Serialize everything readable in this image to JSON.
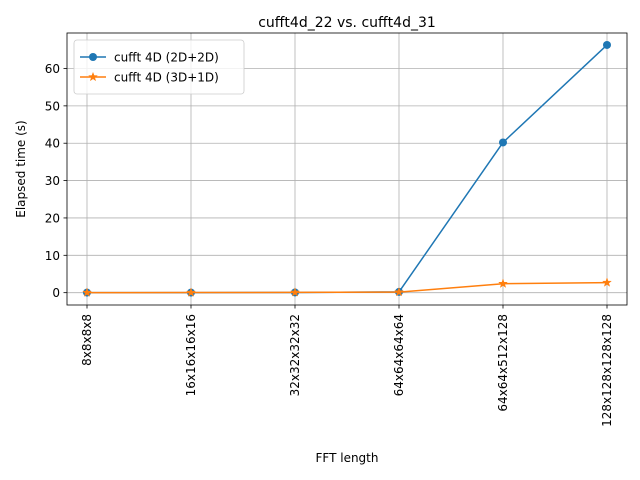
{
  "chart_data": {
    "type": "line",
    "title": "cufft4d_22 vs. cufft4d_31",
    "xlabel": "FFT length",
    "ylabel": "Elapsed time (s)",
    "categories": [
      "8x8x8x8",
      "16x16x16x16",
      "32x32x32x32",
      "64x64x64x64",
      "64x64x512x128",
      "128x128x128x128"
    ],
    "ylim": [
      -3.3,
      69.5
    ],
    "yticks": [
      0,
      10,
      20,
      30,
      40,
      50,
      60
    ],
    "grid": true,
    "legend_position": "upper left",
    "series": [
      {
        "name": "cufft 4D (2D+2D)",
        "marker": "circle",
        "color": "#1f77b4",
        "values": [
          0.02,
          0.02,
          0.05,
          0.2,
          40.2,
          66.3
        ]
      },
      {
        "name": "cufft 4D (3D+1D)",
        "marker": "star",
        "color": "#ff7f0e",
        "values": [
          0.02,
          0.03,
          0.07,
          0.15,
          2.4,
          2.7
        ]
      }
    ]
  }
}
